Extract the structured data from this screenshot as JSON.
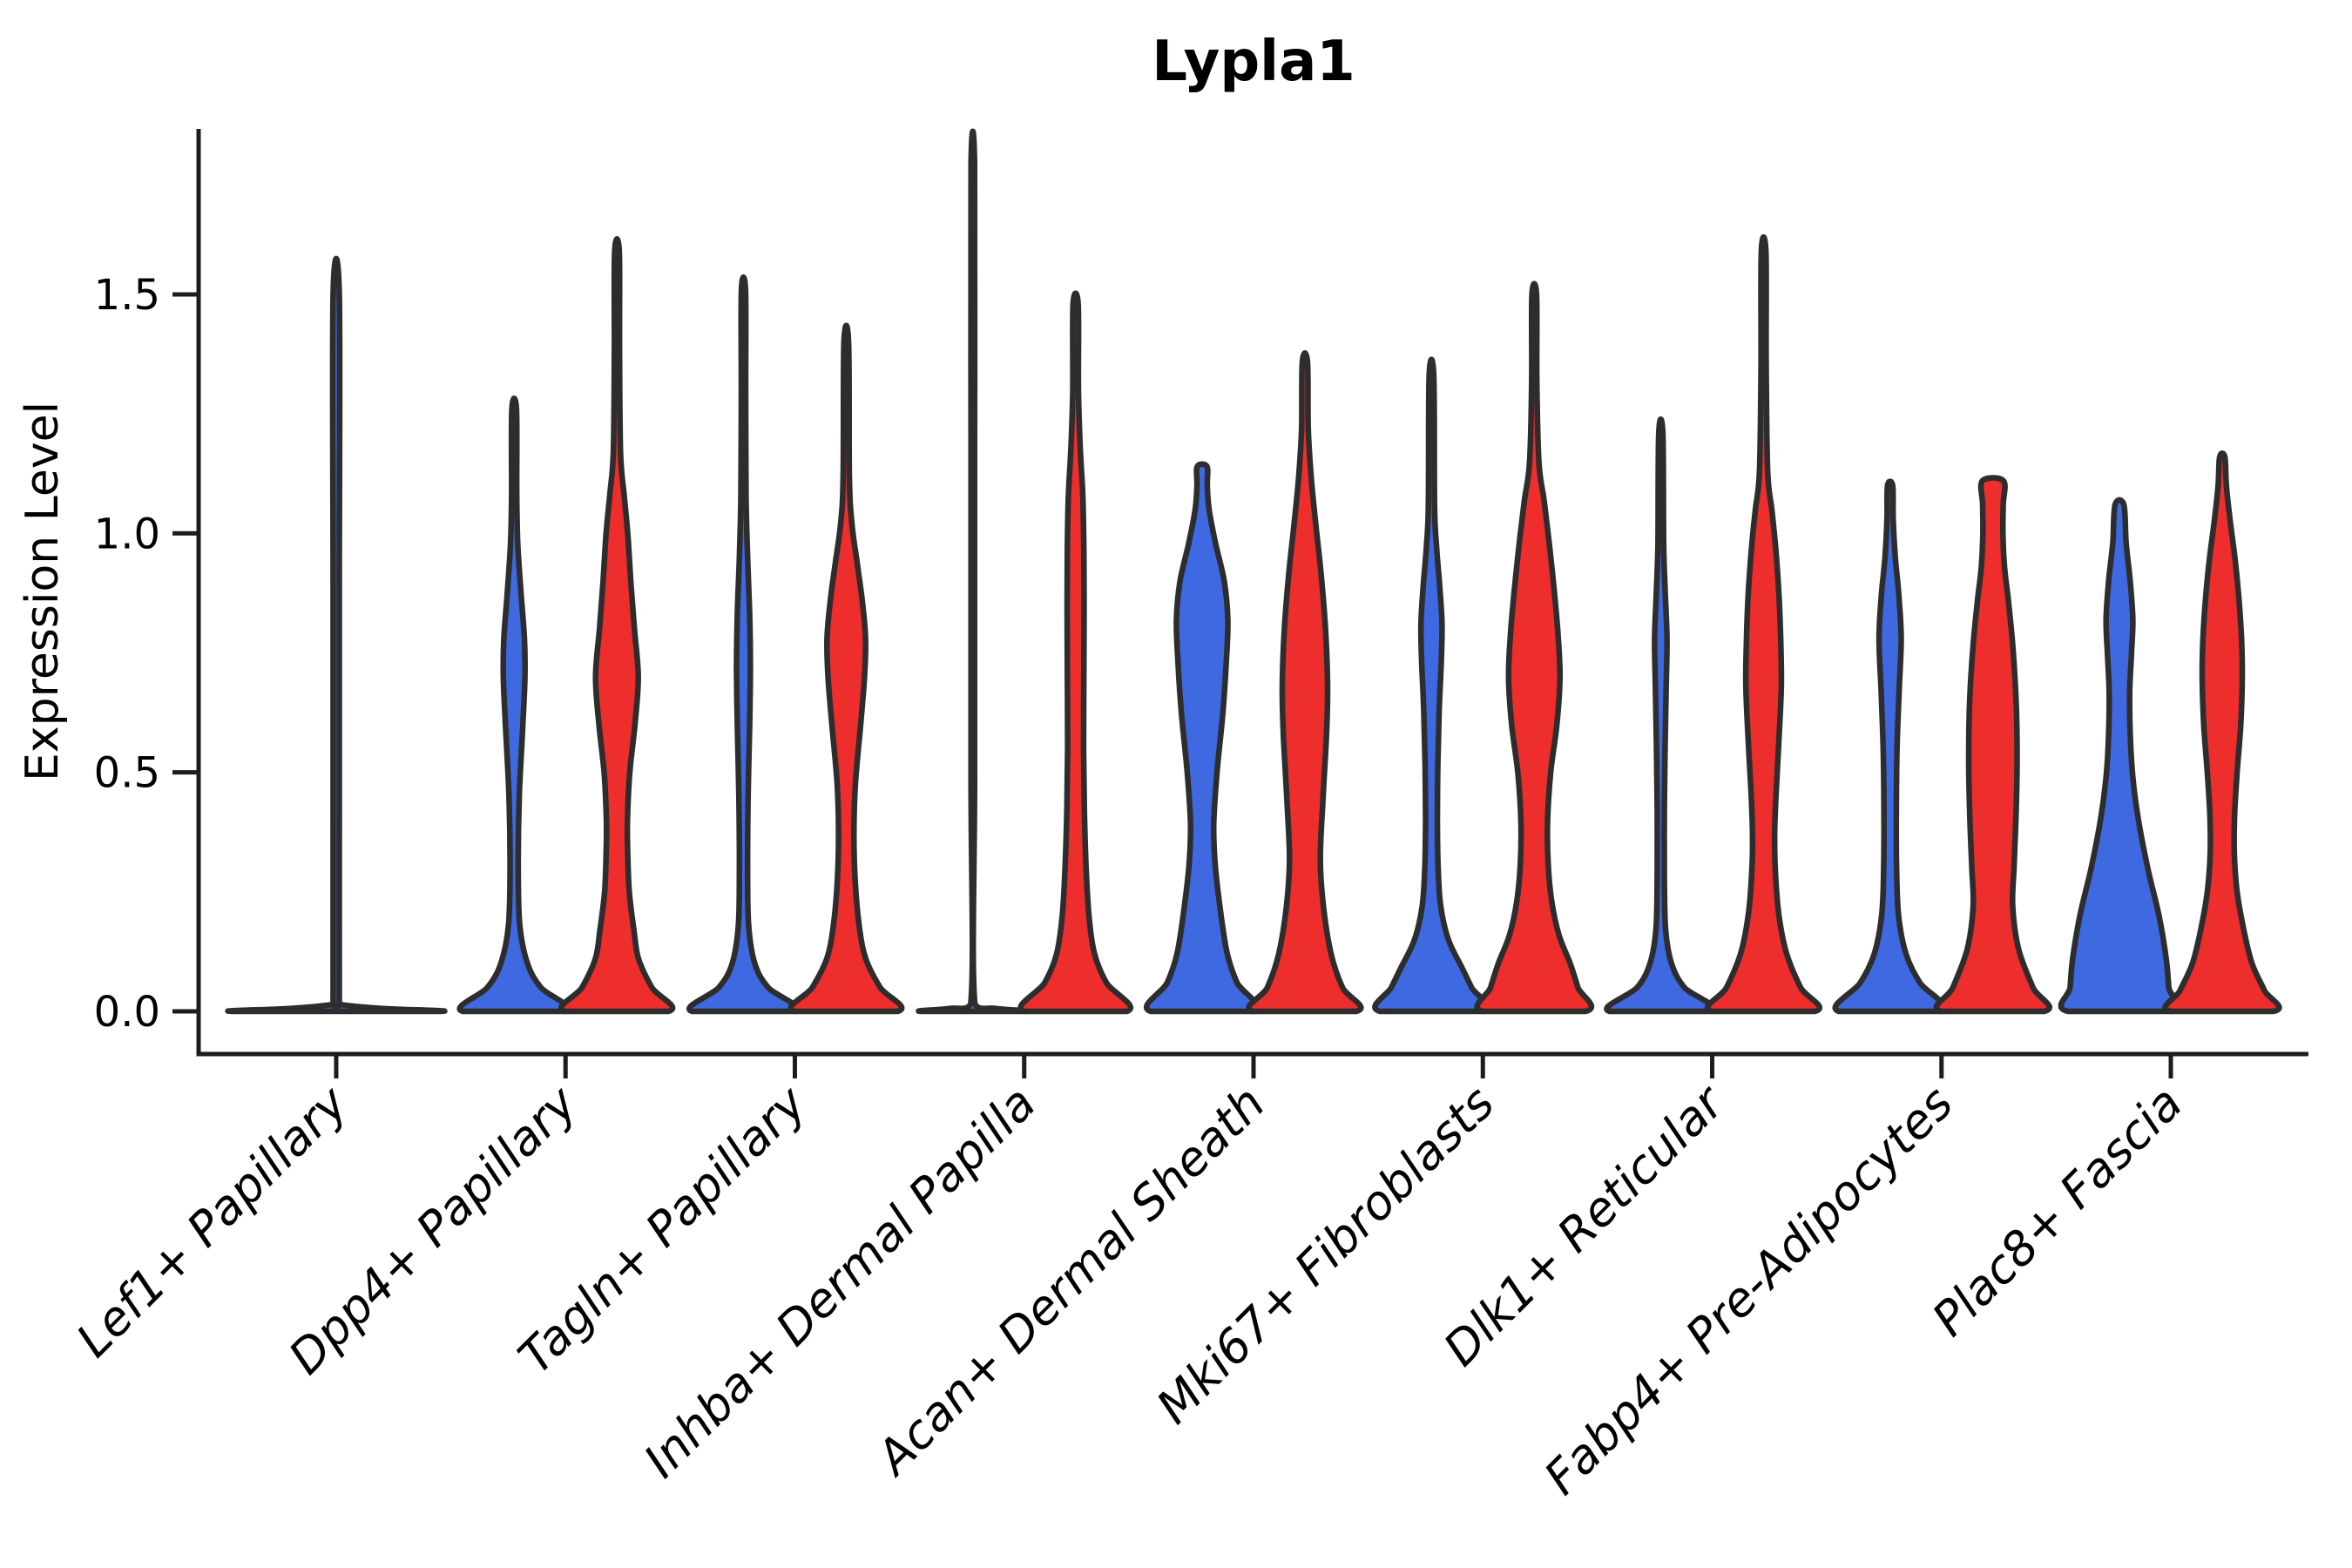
{
  "chart_data": {
    "type": "violin",
    "title": "Lypla1",
    "ylabel": "Expression Level",
    "xlabel": "",
    "yticks": [
      0.0,
      0.5,
      1.0,
      1.5
    ],
    "ytick_labels": [
      "0.0",
      "0.5",
      "1.0",
      "1.5"
    ],
    "ylim": [
      0,
      1.85
    ],
    "grid": false,
    "legend": "none",
    "background": "#FFFFFF",
    "axis_color": "#1C1C1C",
    "outline_color": "#2D2D2D",
    "text_color": "#000000",
    "split_colors": {
      "blue": "#3E69E1",
      "red": "#EE2D2D"
    },
    "categories": [
      "Lef1+ Papillary",
      "Dpp4+ Papillary",
      "Tagln+ Papillary",
      "Inhba+ Dermal Papilla",
      "Acan+ Dermal Sheath",
      "Mki67+ Fibroblasts",
      "Dlk1+ Reticular",
      "Fabp4+ Pre-Adipocytes",
      "Plac8+ Fascia"
    ],
    "violins": [
      {
        "category": "Lef1+ Papillary",
        "group": 0,
        "side": "center",
        "fill_key": "blue",
        "max_expression": 1.5,
        "profile": [
          [
            0,
            1
          ],
          [
            0.006,
            0.45
          ],
          [
            0.014,
            0.05
          ],
          [
            0.02,
            0.03
          ],
          [
            0.4,
            0.03
          ],
          [
            0.9,
            0.03
          ],
          [
            1.5,
            0.03
          ]
        ]
      },
      {
        "category": "Dpp4+ Papillary",
        "group": 1,
        "side": "left",
        "fill_key": "blue",
        "max_expression": 1.26,
        "profile": [
          [
            0,
            1
          ],
          [
            0.05,
            0.52
          ],
          [
            0.1,
            0.26
          ],
          [
            0.18,
            0.11
          ],
          [
            0.3,
            0.08
          ],
          [
            0.45,
            0.1
          ],
          [
            0.6,
            0.17
          ],
          [
            0.7,
            0.21
          ],
          [
            0.78,
            0.2
          ],
          [
            0.88,
            0.13
          ],
          [
            0.98,
            0.07
          ],
          [
            1.08,
            0.05
          ],
          [
            1.26,
            0.045
          ]
        ]
      },
      {
        "category": "Dpp4+ Papillary",
        "group": 1,
        "side": "right",
        "fill_key": "red",
        "max_expression": 1.59,
        "profile": [
          [
            0,
            1
          ],
          [
            0.05,
            0.68
          ],
          [
            0.11,
            0.42
          ],
          [
            0.17,
            0.33
          ],
          [
            0.25,
            0.24
          ],
          [
            0.33,
            0.21
          ],
          [
            0.4,
            0.205
          ],
          [
            0.5,
            0.25
          ],
          [
            0.6,
            0.35
          ],
          [
            0.7,
            0.415
          ],
          [
            0.8,
            0.34
          ],
          [
            0.9,
            0.27
          ],
          [
            1.0,
            0.21
          ],
          [
            1.08,
            0.14
          ],
          [
            1.17,
            0.07
          ],
          [
            1.38,
            0.05
          ],
          [
            1.59,
            0.045
          ]
        ]
      },
      {
        "category": "Tagln+ Papillary",
        "group": 2,
        "side": "left",
        "fill_key": "blue",
        "max_expression": 1.51,
        "profile": [
          [
            0,
            1
          ],
          [
            0.05,
            0.48
          ],
          [
            0.1,
            0.22
          ],
          [
            0.18,
            0.1
          ],
          [
            0.3,
            0.08
          ],
          [
            0.45,
            0.09
          ],
          [
            0.6,
            0.12
          ],
          [
            0.72,
            0.135
          ],
          [
            0.83,
            0.12
          ],
          [
            0.95,
            0.08
          ],
          [
            1.08,
            0.05
          ],
          [
            1.3,
            0.042
          ],
          [
            1.51,
            0.04
          ]
        ]
      },
      {
        "category": "Tagln+ Papillary",
        "group": 2,
        "side": "right",
        "fill_key": "red",
        "max_expression": 1.4,
        "profile": [
          [
            0,
            1
          ],
          [
            0.05,
            0.66
          ],
          [
            0.11,
            0.38
          ],
          [
            0.18,
            0.25
          ],
          [
            0.28,
            0.17
          ],
          [
            0.38,
            0.15
          ],
          [
            0.48,
            0.18
          ],
          [
            0.6,
            0.28
          ],
          [
            0.7,
            0.355
          ],
          [
            0.78,
            0.375
          ],
          [
            0.86,
            0.31
          ],
          [
            0.94,
            0.21
          ],
          [
            1.02,
            0.11
          ],
          [
            1.12,
            0.06
          ],
          [
            1.4,
            0.045
          ]
        ]
      },
      {
        "category": "Inhba+ Dermal Papilla",
        "group": 3,
        "side": "left",
        "fill_key": "blue",
        "max_expression": 1.77,
        "profile": [
          [
            0,
            1
          ],
          [
            0.006,
            0.45
          ],
          [
            0.016,
            0.04
          ],
          [
            0.5,
            0.035
          ],
          [
            1.2,
            0.035
          ],
          [
            1.77,
            0.035
          ]
        ]
      },
      {
        "category": "Inhba+ Dermal Papilla",
        "group": 3,
        "side": "right",
        "fill_key": "red",
        "max_expression": 1.48,
        "profile": [
          [
            0,
            1
          ],
          [
            0.06,
            0.6
          ],
          [
            0.12,
            0.37
          ],
          [
            0.2,
            0.26
          ],
          [
            0.3,
            0.205
          ],
          [
            0.42,
            0.17
          ],
          [
            0.55,
            0.155
          ],
          [
            0.7,
            0.16
          ],
          [
            0.85,
            0.165
          ],
          [
            0.97,
            0.16
          ],
          [
            1.08,
            0.14
          ],
          [
            1.18,
            0.09
          ],
          [
            1.3,
            0.055
          ],
          [
            1.48,
            0.05
          ]
        ]
      },
      {
        "category": "Acan+ Dermal Sheath",
        "group": 4,
        "side": "left",
        "fill_key": "blue",
        "max_expression": 1.14,
        "profile": [
          [
            0,
            1
          ],
          [
            0.06,
            0.68
          ],
          [
            0.12,
            0.49
          ],
          [
            0.2,
            0.37
          ],
          [
            0.3,
            0.26
          ],
          [
            0.39,
            0.225
          ],
          [
            0.5,
            0.29
          ],
          [
            0.62,
            0.4
          ],
          [
            0.73,
            0.47
          ],
          [
            0.82,
            0.5
          ],
          [
            0.9,
            0.43
          ],
          [
            0.98,
            0.26
          ],
          [
            1.05,
            0.135
          ],
          [
            1.1,
            0.1
          ],
          [
            1.14,
            0.095
          ]
        ]
      },
      {
        "category": "Acan+ Dermal Sheath",
        "group": 4,
        "side": "right",
        "fill_key": "red",
        "max_expression": 1.36,
        "profile": [
          [
            0,
            1
          ],
          [
            0.05,
            0.73
          ],
          [
            0.12,
            0.51
          ],
          [
            0.22,
            0.36
          ],
          [
            0.32,
            0.3
          ],
          [
            0.45,
            0.355
          ],
          [
            0.58,
            0.42
          ],
          [
            0.68,
            0.44
          ],
          [
            0.8,
            0.4
          ],
          [
            0.92,
            0.31
          ],
          [
            1.02,
            0.21
          ],
          [
            1.12,
            0.12
          ],
          [
            1.22,
            0.065
          ],
          [
            1.36,
            0.05
          ]
        ]
      },
      {
        "category": "Mki67+ Fibroblasts",
        "group": 5,
        "side": "left",
        "fill_key": "blue",
        "max_expression": 1.33,
        "profile": [
          [
            0,
            1
          ],
          [
            0.05,
            0.78
          ],
          [
            0.09,
            0.6
          ],
          [
            0.15,
            0.33
          ],
          [
            0.22,
            0.18
          ],
          [
            0.3,
            0.13
          ],
          [
            0.4,
            0.115
          ],
          [
            0.52,
            0.125
          ],
          [
            0.63,
            0.15
          ],
          [
            0.73,
            0.19
          ],
          [
            0.81,
            0.205
          ],
          [
            0.89,
            0.16
          ],
          [
            0.97,
            0.1
          ],
          [
            1.06,
            0.06
          ],
          [
            1.33,
            0.045
          ]
        ]
      },
      {
        "category": "Mki67+ Fibroblasts",
        "group": 5,
        "side": "right",
        "fill_key": "red",
        "max_expression": 1.5,
        "profile": [
          [
            0,
            1
          ],
          [
            0.05,
            0.85
          ],
          [
            0.1,
            0.7
          ],
          [
            0.16,
            0.48
          ],
          [
            0.23,
            0.34
          ],
          [
            0.31,
            0.27
          ],
          [
            0.4,
            0.26
          ],
          [
            0.5,
            0.32
          ],
          [
            0.6,
            0.44
          ],
          [
            0.7,
            0.5
          ],
          [
            0.8,
            0.455
          ],
          [
            0.9,
            0.37
          ],
          [
            0.99,
            0.28
          ],
          [
            1.07,
            0.19
          ],
          [
            1.15,
            0.09
          ],
          [
            1.32,
            0.05
          ],
          [
            1.5,
            0.045
          ]
        ]
      },
      {
        "category": "Dlk1+ Reticular",
        "group": 6,
        "side": "left",
        "fill_key": "blue",
        "max_expression": 1.21,
        "profile": [
          [
            0,
            1
          ],
          [
            0.05,
            0.46
          ],
          [
            0.1,
            0.21
          ],
          [
            0.17,
            0.095
          ],
          [
            0.28,
            0.07
          ],
          [
            0.42,
            0.07
          ],
          [
            0.56,
            0.085
          ],
          [
            0.68,
            0.105
          ],
          [
            0.78,
            0.12
          ],
          [
            0.88,
            0.085
          ],
          [
            0.98,
            0.055
          ],
          [
            1.21,
            0.04
          ]
        ]
      },
      {
        "category": "Dlk1+ Reticular",
        "group": 6,
        "side": "right",
        "fill_key": "red",
        "max_expression": 1.59,
        "profile": [
          [
            0,
            1
          ],
          [
            0.05,
            0.72
          ],
          [
            0.12,
            0.45
          ],
          [
            0.2,
            0.3
          ],
          [
            0.29,
            0.23
          ],
          [
            0.37,
            0.215
          ],
          [
            0.46,
            0.245
          ],
          [
            0.57,
            0.3
          ],
          [
            0.68,
            0.345
          ],
          [
            0.77,
            0.335
          ],
          [
            0.87,
            0.3
          ],
          [
            0.97,
            0.235
          ],
          [
            1.05,
            0.16
          ],
          [
            1.13,
            0.08
          ],
          [
            1.35,
            0.05
          ],
          [
            1.59,
            0.045
          ]
        ]
      },
      {
        "category": "Fabp4+ Pre-Adipocytes",
        "group": 7,
        "side": "left",
        "fill_key": "blue",
        "max_expression": 1.1,
        "profile": [
          [
            0,
            1
          ],
          [
            0.06,
            0.58
          ],
          [
            0.12,
            0.31
          ],
          [
            0.2,
            0.165
          ],
          [
            0.3,
            0.125
          ],
          [
            0.42,
            0.12
          ],
          [
            0.55,
            0.135
          ],
          [
            0.67,
            0.175
          ],
          [
            0.78,
            0.215
          ],
          [
            0.87,
            0.17
          ],
          [
            0.95,
            0.1
          ],
          [
            1.03,
            0.06
          ],
          [
            1.1,
            0.05
          ]
        ]
      },
      {
        "category": "Fabp4+ Pre-Adipocytes",
        "group": 7,
        "side": "right",
        "fill_key": "red",
        "max_expression": 1.11,
        "profile": [
          [
            0,
            1
          ],
          [
            0.05,
            0.78
          ],
          [
            0.13,
            0.5
          ],
          [
            0.22,
            0.385
          ],
          [
            0.3,
            0.41
          ],
          [
            0.41,
            0.45
          ],
          [
            0.52,
            0.47
          ],
          [
            0.64,
            0.455
          ],
          [
            0.76,
            0.39
          ],
          [
            0.86,
            0.3
          ],
          [
            0.93,
            0.225
          ],
          [
            1.0,
            0.195
          ],
          [
            1.06,
            0.2
          ],
          [
            1.11,
            0.205
          ]
        ]
      },
      {
        "category": "Plac8+ Fascia",
        "group": 8,
        "side": "left",
        "fill_key": "blue",
        "max_expression": 1.06,
        "profile": [
          [
            0,
            1
          ],
          [
            0.05,
            0.96
          ],
          [
            0.11,
            0.91
          ],
          [
            0.2,
            0.77
          ],
          [
            0.3,
            0.55
          ],
          [
            0.4,
            0.37
          ],
          [
            0.49,
            0.26
          ],
          [
            0.58,
            0.21
          ],
          [
            0.67,
            0.2
          ],
          [
            0.75,
            0.235
          ],
          [
            0.82,
            0.26
          ],
          [
            0.9,
            0.21
          ],
          [
            0.98,
            0.13
          ],
          [
            1.06,
            0.085
          ]
        ]
      },
      {
        "category": "Plac8+ Fascia",
        "group": 8,
        "side": "right",
        "fill_key": "red",
        "max_expression": 1.16,
        "profile": [
          [
            0,
            1
          ],
          [
            0.044,
            0.82
          ],
          [
            0.1,
            0.58
          ],
          [
            0.17,
            0.42
          ],
          [
            0.25,
            0.29
          ],
          [
            0.33,
            0.235
          ],
          [
            0.41,
            0.24
          ],
          [
            0.5,
            0.29
          ],
          [
            0.6,
            0.36
          ],
          [
            0.7,
            0.39
          ],
          [
            0.78,
            0.375
          ],
          [
            0.87,
            0.32
          ],
          [
            0.95,
            0.245
          ],
          [
            1.03,
            0.15
          ],
          [
            1.1,
            0.08
          ],
          [
            1.16,
            0.05
          ]
        ]
      }
    ]
  }
}
